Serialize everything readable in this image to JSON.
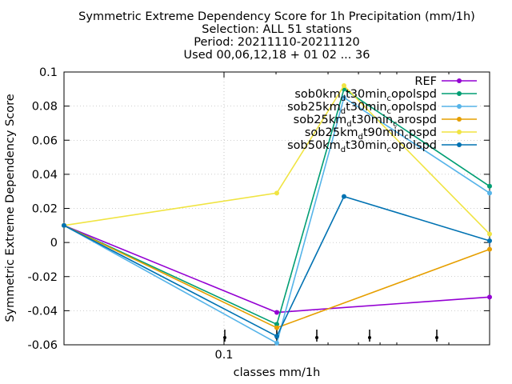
{
  "chart_data": {
    "type": "line",
    "title": [
      "Symmetric Extreme Dependency Score  for 1h Precipitation (mm/1h)",
      "Selection: ALL      51 stations",
      "Period: 20211110-20211120",
      "Used 00,06,12,18 + 01 02 ... 36"
    ],
    "xlabel": "classes mm/1h",
    "ylabel": "Symmetric Extreme Dependency Score",
    "x_scale": "log",
    "x_ticks": [
      0.1
    ],
    "ylim": [
      -0.06,
      0.1
    ],
    "y_ticks": [
      -0.06,
      -0.04,
      -0.02,
      0,
      0.02,
      0.04,
      0.06,
      0.08,
      0.1
    ],
    "grid": true,
    "legend_position": "top-right",
    "x": [
      0.03,
      0.2,
      0.4,
      1.4
    ],
    "series": [
      {
        "name": "REF",
        "label_html": [
          "REF"
        ],
        "color": "#9400d3",
        "values": [
          0.01,
          -0.041,
          null,
          -0.032
        ]
      },
      {
        "name": "sob0km_t30min_c_opolspd",
        "label_html": [
          "sob0km",
          "d",
          "t30min",
          "c",
          "opolspd"
        ],
        "color": "#009e73",
        "values": [
          0.01,
          -0.048,
          0.09,
          0.033
        ]
      },
      {
        "name": "sob25km_d_t30min_c_opolspd",
        "label_html": [
          "sob25km",
          "d",
          "t30min",
          "c",
          "opolspd"
        ],
        "color": "#56b4e9",
        "values": [
          0.01,
          -0.059,
          0.085,
          0.029
        ]
      },
      {
        "name": "sob25km_d_t30min_c_arospd",
        "label_html": [
          "sob25km",
          "d",
          "t30min",
          "c",
          "arospd"
        ],
        "color": "#e69f00",
        "values": [
          0.01,
          -0.05,
          null,
          -0.004
        ]
      },
      {
        "name": "sob25km_d_t90min_c_pspd",
        "label_html": [
          "sob25km",
          "d",
          "t90min",
          "c",
          "pspd"
        ],
        "color": "#f0e442",
        "values": [
          0.01,
          0.029,
          0.092,
          0.005
        ]
      },
      {
        "name": "sob50km_d_t30min_c_opolspd",
        "label_html": [
          "sob50km",
          "d",
          "t30min",
          "c",
          "opolspd"
        ],
        "color": "#0072b2",
        "values": [
          0.01,
          -0.055,
          0.027,
          0.001
        ]
      }
    ]
  }
}
